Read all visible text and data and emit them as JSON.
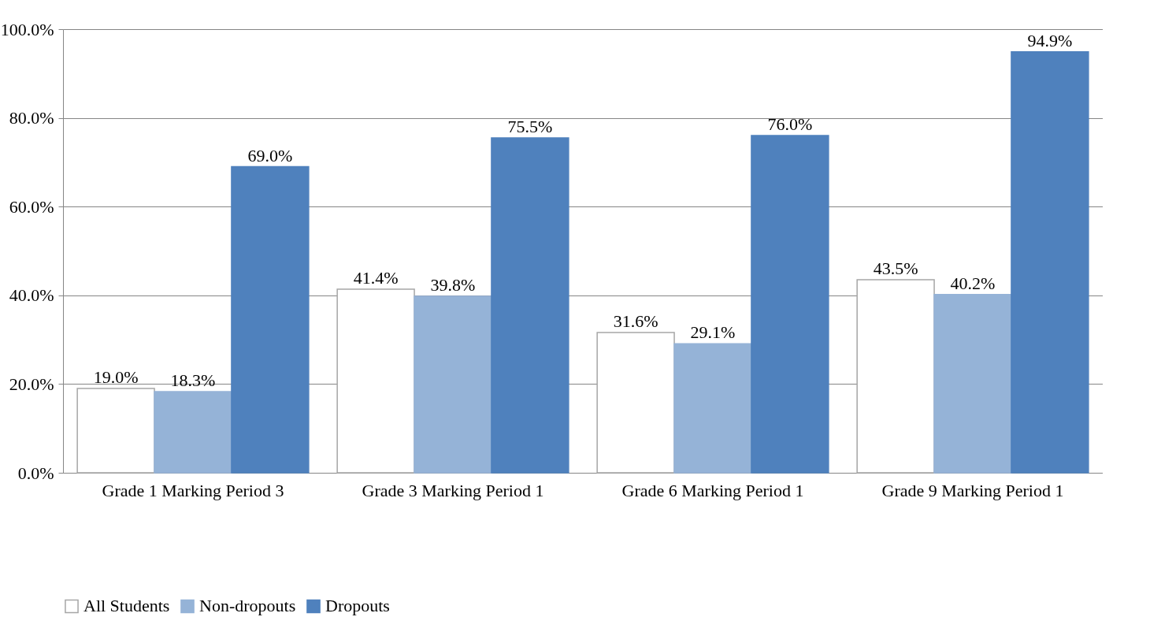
{
  "chart_data": {
    "type": "bar",
    "categories": [
      "Grade 1 Marking Period 3",
      "Grade 3 Marking Period 1",
      "Grade 6 Marking Period 1",
      "Grade 9 Marking Period 1"
    ],
    "series": [
      {
        "name": "All Students",
        "color": "#ffffff",
        "values": [
          19.0,
          41.4,
          31.6,
          43.5
        ],
        "value_labels": [
          "19.0%",
          "41.4%",
          "31.6%",
          "43.5%"
        ]
      },
      {
        "name": "Non-dropouts",
        "color": "#95b3d7",
        "values": [
          18.3,
          39.8,
          29.1,
          40.2
        ],
        "value_labels": [
          "18.3%",
          "39.8%",
          "29.1%",
          "40.2%"
        ]
      },
      {
        "name": "Dropouts",
        "color": "#4f81bd",
        "values": [
          69.0,
          75.5,
          76.0,
          94.9
        ],
        "value_labels": [
          "69.0%",
          "75.5%",
          "76.0%",
          "94.9%"
        ]
      }
    ],
    "ylim": [
      0,
      100
    ],
    "yticks": [
      {
        "value": 0,
        "label": "0.0%"
      },
      {
        "value": 20,
        "label": "20.0%"
      },
      {
        "value": 40,
        "label": "40.0%"
      },
      {
        "value": 60,
        "label": "60.0%"
      },
      {
        "value": 80,
        "label": "80.0%"
      },
      {
        "value": 100,
        "label": "100.0%"
      }
    ],
    "grid": "y",
    "legend": "bottom"
  }
}
